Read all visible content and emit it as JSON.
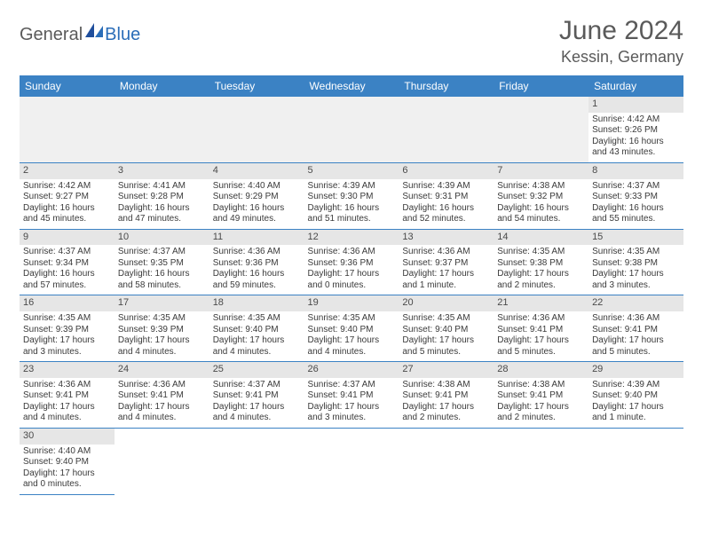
{
  "logo": {
    "text1": "General",
    "text2": "Blue"
  },
  "title": "June 2024",
  "location": "Kessin, Germany",
  "colors": {
    "header_bg": "#3b82c4",
    "header_text": "#ffffff",
    "daynum_bg": "#e6e6e6",
    "blank_bg": "#f0f0f0",
    "border": "#3b82c4",
    "title_color": "#5a5a5a",
    "logo_gray": "#5a5a5a",
    "logo_blue": "#2a6db8"
  },
  "weekdays": [
    "Sunday",
    "Monday",
    "Tuesday",
    "Wednesday",
    "Thursday",
    "Friday",
    "Saturday"
  ],
  "blanks_before": 6,
  "days": [
    {
      "n": 1,
      "sunrise": "4:42 AM",
      "sunset": "9:26 PM",
      "daylight": "16 hours and 43 minutes."
    },
    {
      "n": 2,
      "sunrise": "4:42 AM",
      "sunset": "9:27 PM",
      "daylight": "16 hours and 45 minutes."
    },
    {
      "n": 3,
      "sunrise": "4:41 AM",
      "sunset": "9:28 PM",
      "daylight": "16 hours and 47 minutes."
    },
    {
      "n": 4,
      "sunrise": "4:40 AM",
      "sunset": "9:29 PM",
      "daylight": "16 hours and 49 minutes."
    },
    {
      "n": 5,
      "sunrise": "4:39 AM",
      "sunset": "9:30 PM",
      "daylight": "16 hours and 51 minutes."
    },
    {
      "n": 6,
      "sunrise": "4:39 AM",
      "sunset": "9:31 PM",
      "daylight": "16 hours and 52 minutes."
    },
    {
      "n": 7,
      "sunrise": "4:38 AM",
      "sunset": "9:32 PM",
      "daylight": "16 hours and 54 minutes."
    },
    {
      "n": 8,
      "sunrise": "4:37 AM",
      "sunset": "9:33 PM",
      "daylight": "16 hours and 55 minutes."
    },
    {
      "n": 9,
      "sunrise": "4:37 AM",
      "sunset": "9:34 PM",
      "daylight": "16 hours and 57 minutes."
    },
    {
      "n": 10,
      "sunrise": "4:37 AM",
      "sunset": "9:35 PM",
      "daylight": "16 hours and 58 minutes."
    },
    {
      "n": 11,
      "sunrise": "4:36 AM",
      "sunset": "9:36 PM",
      "daylight": "16 hours and 59 minutes."
    },
    {
      "n": 12,
      "sunrise": "4:36 AM",
      "sunset": "9:36 PM",
      "daylight": "17 hours and 0 minutes."
    },
    {
      "n": 13,
      "sunrise": "4:36 AM",
      "sunset": "9:37 PM",
      "daylight": "17 hours and 1 minute."
    },
    {
      "n": 14,
      "sunrise": "4:35 AM",
      "sunset": "9:38 PM",
      "daylight": "17 hours and 2 minutes."
    },
    {
      "n": 15,
      "sunrise": "4:35 AM",
      "sunset": "9:38 PM",
      "daylight": "17 hours and 3 minutes."
    },
    {
      "n": 16,
      "sunrise": "4:35 AM",
      "sunset": "9:39 PM",
      "daylight": "17 hours and 3 minutes."
    },
    {
      "n": 17,
      "sunrise": "4:35 AM",
      "sunset": "9:39 PM",
      "daylight": "17 hours and 4 minutes."
    },
    {
      "n": 18,
      "sunrise": "4:35 AM",
      "sunset": "9:40 PM",
      "daylight": "17 hours and 4 minutes."
    },
    {
      "n": 19,
      "sunrise": "4:35 AM",
      "sunset": "9:40 PM",
      "daylight": "17 hours and 4 minutes."
    },
    {
      "n": 20,
      "sunrise": "4:35 AM",
      "sunset": "9:40 PM",
      "daylight": "17 hours and 5 minutes."
    },
    {
      "n": 21,
      "sunrise": "4:36 AM",
      "sunset": "9:41 PM",
      "daylight": "17 hours and 5 minutes."
    },
    {
      "n": 22,
      "sunrise": "4:36 AM",
      "sunset": "9:41 PM",
      "daylight": "17 hours and 5 minutes."
    },
    {
      "n": 23,
      "sunrise": "4:36 AM",
      "sunset": "9:41 PM",
      "daylight": "17 hours and 4 minutes."
    },
    {
      "n": 24,
      "sunrise": "4:36 AM",
      "sunset": "9:41 PM",
      "daylight": "17 hours and 4 minutes."
    },
    {
      "n": 25,
      "sunrise": "4:37 AM",
      "sunset": "9:41 PM",
      "daylight": "17 hours and 4 minutes."
    },
    {
      "n": 26,
      "sunrise": "4:37 AM",
      "sunset": "9:41 PM",
      "daylight": "17 hours and 3 minutes."
    },
    {
      "n": 27,
      "sunrise": "4:38 AM",
      "sunset": "9:41 PM",
      "daylight": "17 hours and 2 minutes."
    },
    {
      "n": 28,
      "sunrise": "4:38 AM",
      "sunset": "9:41 PM",
      "daylight": "17 hours and 2 minutes."
    },
    {
      "n": 29,
      "sunrise": "4:39 AM",
      "sunset": "9:40 PM",
      "daylight": "17 hours and 1 minute."
    },
    {
      "n": 30,
      "sunrise": "4:40 AM",
      "sunset": "9:40 PM",
      "daylight": "17 hours and 0 minutes."
    }
  ]
}
